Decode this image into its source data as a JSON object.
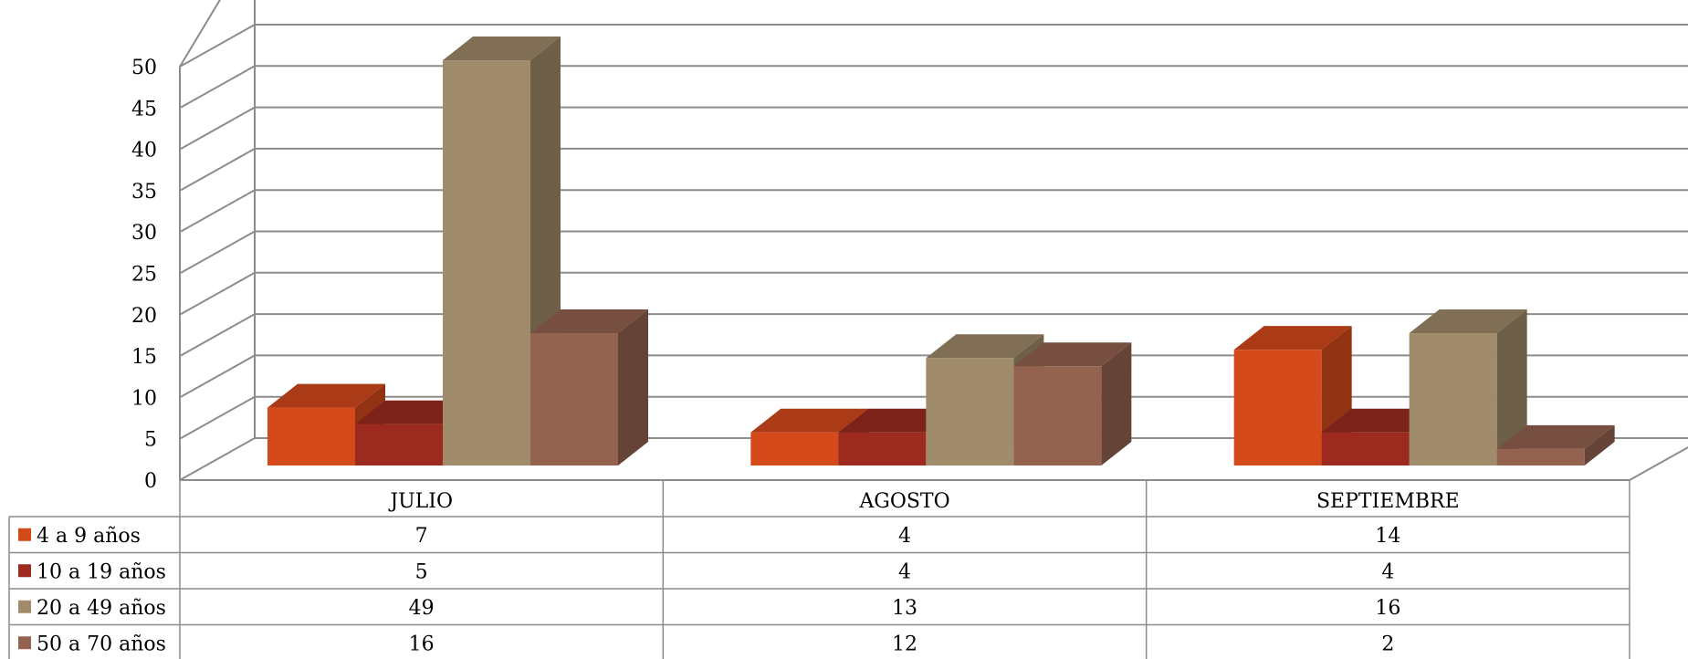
{
  "chart_data": {
    "type": "bar",
    "title": "",
    "xlabel": "",
    "ylabel": "",
    "ylim": [
      0,
      50
    ],
    "y_ticks": [
      0,
      5,
      10,
      15,
      20,
      25,
      30,
      35,
      40,
      45,
      50
    ],
    "grid": true,
    "legend": "data-table-left",
    "categories": [
      "JULIO",
      "AGOSTO",
      "SEPTIEMBRE"
    ],
    "series": [
      {
        "name": "4 a 9 años",
        "values": [
          7,
          4,
          14
        ],
        "color": "#D54A1B"
      },
      {
        "name": "10 a 19 años",
        "values": [
          5,
          4,
          4
        ],
        "color": "#9C2A1E"
      },
      {
        "name": "20 a 49 años",
        "values": [
          49,
          13,
          16
        ],
        "color": "#A08B6A"
      },
      {
        "name": "50 a 70 años",
        "values": [
          16,
          12,
          2
        ],
        "color": "#946350"
      }
    ]
  }
}
